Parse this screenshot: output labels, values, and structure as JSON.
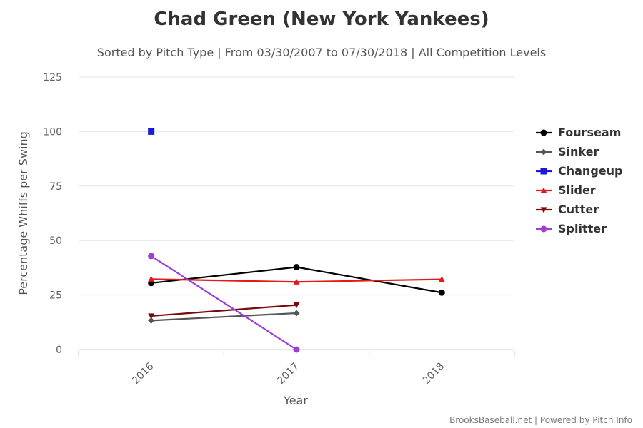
{
  "chart_data": {
    "type": "line",
    "title": "Chad Green (New York Yankees)",
    "subtitle": "Sorted by Pitch Type | From 03/30/2007 to 07/30/2018 | All Competition Levels",
    "xlabel": "Year",
    "ylabel": "Percentage Whiffs per Swing",
    "categories": [
      "2016",
      "2017",
      "2018"
    ],
    "ylim": [
      0,
      125
    ],
    "yticks": [
      0,
      25,
      50,
      75,
      100,
      125
    ],
    "grid": true,
    "legend_position": "right",
    "credits": "BrooksBaseball.net | Powered by Pitch Info",
    "series": [
      {
        "name": "Fourseam",
        "color": "#000000",
        "marker": "circle",
        "values": [
          30.5,
          37.8,
          26.1
        ]
      },
      {
        "name": "Sinker",
        "color": "#555555",
        "marker": "diamond",
        "values": [
          13.3,
          16.7,
          null
        ]
      },
      {
        "name": "Changeup",
        "color": "#1a1adb",
        "marker": "square",
        "values": [
          100,
          null,
          null
        ]
      },
      {
        "name": "Slider",
        "color": "#e31a1c",
        "marker": "triangle",
        "values": [
          32.3,
          31.0,
          32.2
        ]
      },
      {
        "name": "Cutter",
        "color": "#7a0a0a",
        "marker": "triangle-down",
        "values": [
          15.4,
          20.4,
          null
        ]
      },
      {
        "name": "Splitter",
        "color": "#9b3fd6",
        "marker": "circle",
        "values": [
          42.9,
          0,
          null
        ]
      }
    ]
  }
}
